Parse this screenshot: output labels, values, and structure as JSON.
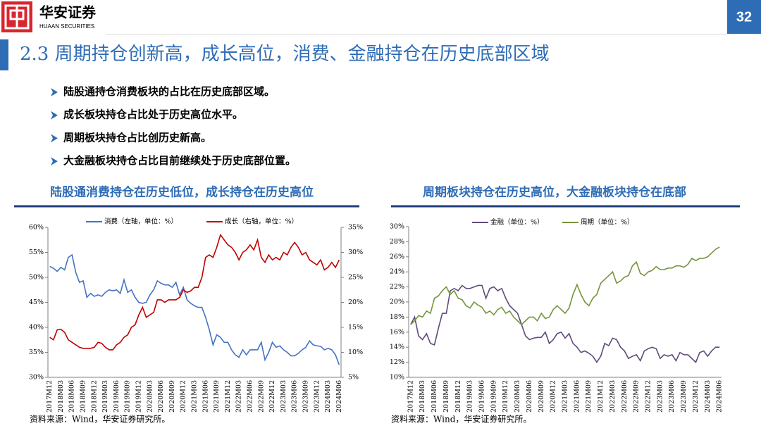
{
  "header": {
    "logo_name": "华安证券",
    "logo_sub": "HUAAN SECURITIES",
    "page_number": "32",
    "title": "2.3 周期持仓创新高，成长高位，消费、金融持仓在历史底部区域"
  },
  "bullets": [
    "陆股通持仓消费板块的占比在历史底部区域。",
    "成长板块持仓占比处于历史高位水平。",
    "周期板块持仓占比创历史新高。",
    "大金融板块持仓占比目前继续处于历史底部位置。"
  ],
  "chart_data": [
    {
      "type": "line",
      "title": "陆股通消费持仓在历史低位，成长持仓在历史高位",
      "source": "资料来源：Wind，华安证券研究所。",
      "legend": "top",
      "grid": false,
      "categories": [
        "2017M12",
        null,
        null,
        "2018M03",
        null,
        null,
        "2018M06",
        null,
        null,
        "2018M09",
        null,
        null,
        "2018M12",
        null,
        null,
        "2019M03",
        null,
        null,
        "2019M06",
        null,
        null,
        "2019M09",
        null,
        null,
        "2019M12",
        null,
        null,
        "2020M03",
        null,
        null,
        "2020M06",
        null,
        null,
        "2020M09",
        null,
        null,
        "2020M12",
        null,
        null,
        "2021M03",
        null,
        null,
        "2021M06",
        null,
        null,
        "2021M09",
        null,
        null,
        "2021M12",
        null,
        null,
        "2022M03",
        null,
        null,
        "2022M06",
        null,
        null,
        "2022M09",
        null,
        null,
        "2022M12",
        null,
        null,
        "2023M03",
        null,
        null,
        "2023M06",
        null,
        null,
        "2023M09",
        null,
        null,
        "2023M12",
        null,
        null,
        "2024M03",
        null,
        null,
        "2024M06"
      ],
      "series": [
        {
          "name": "消费（左轴，单位：%）",
          "color": "#4472c4",
          "values": [
            52.2,
            51.8,
            51.2,
            52,
            51.5,
            54,
            54.5,
            51,
            49,
            49.3,
            46,
            46.8,
            46.2,
            46.5,
            46.2,
            47,
            47.5,
            47.3,
            47.5,
            46.8,
            49.5,
            47,
            47.5,
            46,
            45,
            44.8,
            45,
            46.5,
            47.5,
            49.3,
            48.8,
            48.5,
            48.5,
            48,
            49,
            46.5,
            48,
            45.5,
            44.8,
            44.3,
            44,
            44,
            42,
            39.5,
            36.5,
            38.5,
            38,
            37,
            37,
            35.5,
            34.5,
            34,
            35.5,
            34.5,
            35.5,
            35.5,
            35.5,
            37,
            33.5,
            35,
            37,
            36,
            36.3,
            35.5,
            35,
            34.3,
            34.3,
            34.8,
            35.5,
            36,
            37.3,
            36.5,
            36.3,
            36.2,
            35.5,
            35.8,
            35.5,
            34.5,
            32.5
          ]
        },
        {
          "name": "成长（右轴，单位：%）",
          "color": "#c00000",
          "axis": "y2",
          "values": [
            13,
            12.5,
            14.5,
            14.6,
            14,
            12.5,
            12,
            11.5,
            11,
            10.8,
            10.8,
            10.8,
            11,
            12,
            11.8,
            11,
            10.5,
            10.5,
            11.5,
            12,
            13,
            13.5,
            15,
            15.5,
            17.5,
            19,
            17,
            17.5,
            18,
            20.5,
            20.5,
            20,
            20.5,
            20.5,
            20.5,
            21,
            22.5,
            22,
            22.3,
            23,
            23,
            25,
            29,
            29.5,
            29,
            31,
            33.5,
            32.5,
            31.5,
            31,
            30,
            28.5,
            30,
            30.5,
            31.5,
            30.5,
            32.5,
            29,
            28,
            29.5,
            28.5,
            29,
            28.5,
            30,
            29.5,
            31,
            32,
            31,
            29.5,
            30,
            28.5,
            28,
            27.5,
            28.5,
            26.5,
            27,
            28,
            27,
            28.5
          ]
        }
      ],
      "ylim": [
        30,
        60
      ],
      "yticks": [
        {
          "value": 30,
          "label": "30%"
        },
        {
          "value": 35,
          "label": "35%"
        },
        {
          "value": 40,
          "label": "40%"
        },
        {
          "value": 45,
          "label": "45%"
        },
        {
          "value": 50,
          "label": "50%"
        },
        {
          "value": 55,
          "label": "55%"
        },
        {
          "value": 60,
          "label": "60%"
        }
      ],
      "y2lim": [
        5,
        35
      ],
      "y2ticks": [
        {
          "value": 5,
          "label": "5%"
        },
        {
          "value": 10,
          "label": "10%"
        },
        {
          "value": 15,
          "label": "15%"
        },
        {
          "value": 20,
          "label": "20%"
        },
        {
          "value": 25,
          "label": "25%"
        },
        {
          "value": 30,
          "label": "30%"
        },
        {
          "value": 35,
          "label": "35%"
        }
      ]
    },
    {
      "type": "line",
      "title": "周期板块持仓在历史高位，大金融板块持仓在底部",
      "source": "资料来源：Wind，华安证券研究所。",
      "legend": "top",
      "grid": false,
      "categories": [
        "2017M12",
        null,
        null,
        "2018M03",
        null,
        null,
        "2018M06",
        null,
        null,
        "2018M09",
        null,
        null,
        "2018M12",
        null,
        null,
        "2019M03",
        null,
        null,
        "2019M06",
        null,
        null,
        "2019M09",
        null,
        null,
        "2019M12",
        null,
        null,
        "2020M03",
        null,
        null,
        "2020M06",
        null,
        null,
        "2020M09",
        null,
        null,
        "2020M12",
        null,
        null,
        "2021M03",
        null,
        null,
        "2021M06",
        null,
        null,
        "2021M09",
        null,
        null,
        "2021M12",
        null,
        null,
        "2022M03",
        null,
        null,
        "2022M06",
        null,
        null,
        "2022M09",
        null,
        null,
        "2022M12",
        null,
        null,
        "2023M03",
        null,
        null,
        "2023M06",
        null,
        null,
        "2023M09",
        null,
        null,
        "2023M12",
        null,
        null,
        "2024M03",
        null,
        null,
        "2024M06"
      ],
      "series": [
        {
          "name": "金融（单位：%）",
          "color": "#604a7b",
          "values": [
            17,
            18,
            15.5,
            15,
            15.8,
            14.5,
            14.3,
            16.5,
            18.5,
            18.5,
            21.5,
            21.8,
            21.5,
            22.2,
            21.8,
            21.8,
            22,
            22.2,
            22.2,
            20.5,
            21.8,
            22,
            21.5,
            21.8,
            20.5,
            19.5,
            19,
            18.5,
            17,
            15.5,
            15,
            15.2,
            15.3,
            15.3,
            16,
            14.5,
            15,
            15.8,
            16,
            15.2,
            15.8,
            14.5,
            14,
            13.3,
            13.5,
            13.2,
            12.8,
            12,
            12.8,
            14.5,
            14.2,
            15.2,
            15,
            14,
            13.5,
            12.5,
            12.8,
            13,
            12.2,
            13.5,
            13.8,
            14,
            13.8,
            12.5,
            13,
            12.8,
            13,
            12.2,
            13.3,
            13,
            13,
            12.5,
            12,
            13.3,
            13.5,
            12.8,
            13.5,
            14,
            14
          ]
        },
        {
          "name": "周期（单位：%）",
          "color": "#77933c",
          "values": [
            17,
            17.5,
            18.2,
            18,
            18.8,
            18.5,
            20.5,
            20.8,
            21.5,
            22,
            21,
            21.5,
            20.5,
            20.3,
            19.5,
            19.2,
            20,
            19.6,
            19.3,
            18.5,
            18.8,
            18.3,
            19,
            19.3,
            18.5,
            18.8,
            18,
            17.5,
            17,
            17.5,
            18,
            18,
            17.5,
            18.5,
            17.8,
            18,
            19,
            19.5,
            19,
            18.5,
            19.2,
            21,
            22.3,
            21,
            20,
            19.5,
            20.5,
            21,
            22.5,
            23,
            23.5,
            24,
            22.5,
            22.8,
            23.3,
            23.5,
            24.8,
            25.3,
            23.8,
            23.5,
            24,
            24.2,
            24.7,
            24.3,
            24.3,
            24.5,
            24.5,
            24.8,
            24.8,
            24.6,
            25,
            25.8,
            25.5,
            25.8,
            25.8,
            26,
            26.5,
            27,
            27.3
          ]
        }
      ],
      "ylim": [
        10,
        30
      ],
      "yticks": [
        {
          "value": 10,
          "label": "10%"
        },
        {
          "value": 12,
          "label": "12%"
        },
        {
          "value": 14,
          "label": "14%"
        },
        {
          "value": 16,
          "label": "16%"
        },
        {
          "value": 18,
          "label": "18%"
        },
        {
          "value": 20,
          "label": "20%"
        },
        {
          "value": 22,
          "label": "22%"
        },
        {
          "value": 24,
          "label": "24%"
        },
        {
          "value": 26,
          "label": "26%"
        },
        {
          "value": 28,
          "label": "28%"
        },
        {
          "value": 30,
          "label": "30%"
        }
      ]
    }
  ]
}
